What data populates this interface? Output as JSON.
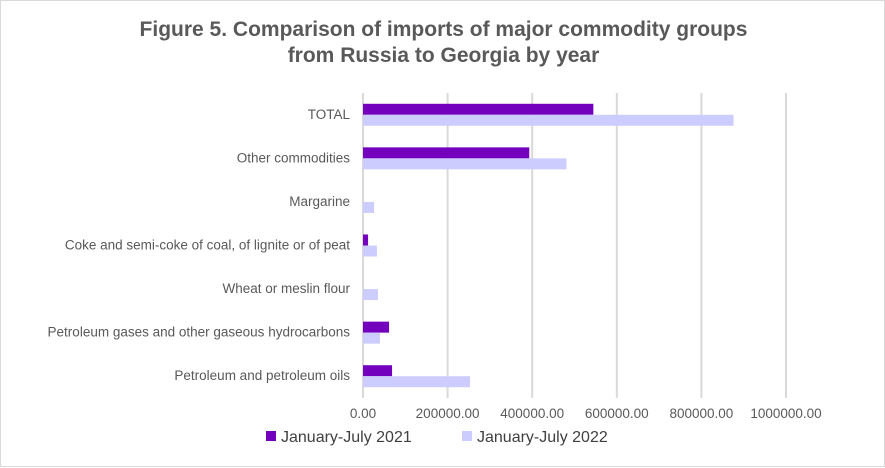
{
  "chart_data": {
    "type": "bar",
    "orientation": "horizontal",
    "title_line1": "Figure 5. Comparison of imports of major commodity  groups",
    "title_line2": "from Russia to Georgia by year",
    "categories": [
      "TOTAL",
      "Other commodities",
      "Margarine",
      "Coke and semi-coke of coal, of lignite or of peat",
      "Wheat or meslin flour",
      "Petroleum gases and other gaseous hydrocarbons",
      "Petroleum and petroleum oils"
    ],
    "series": [
      {
        "name": "January-July 2021",
        "color": "#7200bc",
        "values": [
          544600,
          393000,
          0,
          12000,
          0,
          61600,
          68700
        ]
      },
      {
        "name": "January-July 2022",
        "color": "#ccccff",
        "values": [
          876000,
          481000,
          26000,
          33000,
          35500,
          40000,
          253000
        ]
      }
    ],
    "xlim": [
      0,
      1000000
    ],
    "xticks": [
      "0.00",
      "200000.00",
      "400000.00",
      "600000.00",
      "800000.00",
      "1000000.00"
    ],
    "grid": true,
    "legend": "bottom"
  }
}
